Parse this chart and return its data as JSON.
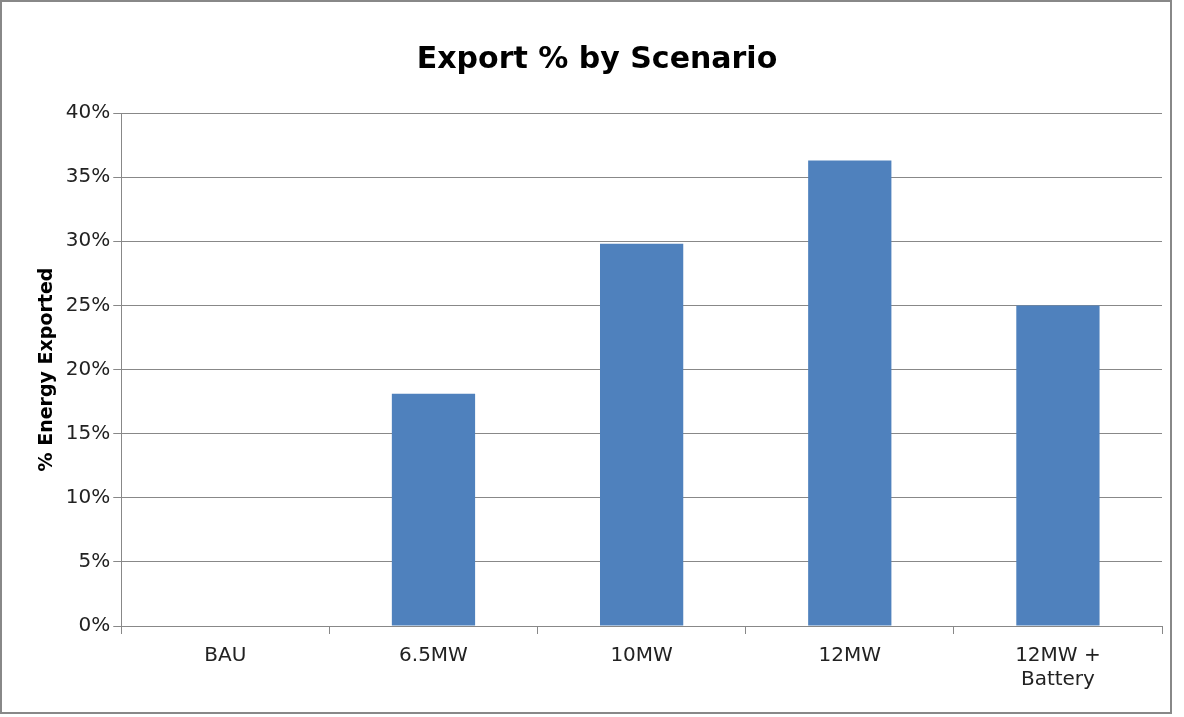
{
  "chart_data": {
    "type": "bar",
    "title": "Export % by Scenario",
    "ylabel": "% Energy Exported",
    "categories": [
      "BAU",
      "6.5MW",
      "10MW",
      "12MW",
      "12MW + Battery"
    ],
    "values": [
      0,
      18.1,
      29.8,
      36.3,
      25.0
    ],
    "color": "#4f81bd",
    "ylim": [
      0,
      40
    ],
    "yticks": [
      {
        "value": 0,
        "label": "0%"
      },
      {
        "value": 5,
        "label": "5%"
      },
      {
        "value": 10,
        "label": "10%"
      },
      {
        "value": 15,
        "label": "15%"
      },
      {
        "value": 20,
        "label": "20%"
      },
      {
        "value": 25,
        "label": "25%"
      },
      {
        "value": 30,
        "label": "30%"
      },
      {
        "value": 35,
        "label": "35%"
      },
      {
        "value": 40,
        "label": "40%"
      }
    ],
    "grid": "y",
    "legend": false
  }
}
